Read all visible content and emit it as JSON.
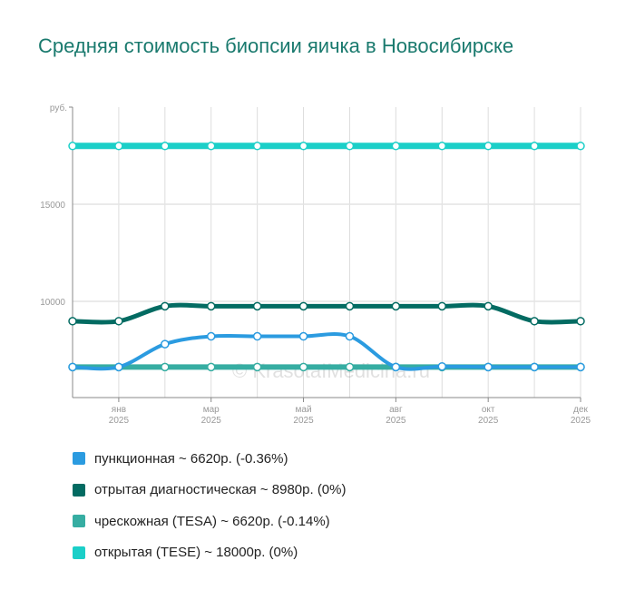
{
  "title": "Средняя стоимость биопсии яичка в Новосибирске",
  "watermark": "© KrasotaIMedicina.ru",
  "chart_data": {
    "type": "line",
    "title": "Средняя стоимость биопсии яичка в Новосибирске",
    "ylabel": "руб.",
    "ylim": [
      5050,
      19000
    ],
    "yticks": [
      {
        "value": 10000,
        "label": "10000"
      },
      {
        "value": 15000,
        "label": "15000"
      }
    ],
    "x_labels": [
      null,
      [
        "янв",
        "2025"
      ],
      null,
      [
        "мар",
        "2025"
      ],
      null,
      [
        "май",
        "2025"
      ],
      null,
      [
        "авг",
        "2025"
      ],
      null,
      [
        "окт",
        "2025"
      ],
      null,
      [
        "дек",
        "2025"
      ]
    ],
    "grid": true,
    "legend_position": "bottom",
    "series": [
      {
        "name": "пунктионная",
        "legend": "пункционная ~ 6620р. (-0.36%)",
        "color": "#2b9be0",
        "values": [
          6620,
          6620,
          7800,
          8200,
          8200,
          8200,
          8200,
          6620,
          6650,
          6620,
          6620,
          6620
        ]
      },
      {
        "name": "отрытая диагностическая",
        "legend": "отрытая диагностическая ~ 8980р. (0%)",
        "color": "#036b62",
        "values": [
          8980,
          8980,
          9750,
          9750,
          9750,
          9750,
          9750,
          9750,
          9750,
          9750,
          8980,
          8980
        ]
      },
      {
        "name": "чрескожная (TESA)",
        "legend": "чрескожная (TESA) ~ 6620р. (-0.14%)",
        "color": "#36ada2",
        "values": [
          6620,
          6620,
          6620,
          6620,
          6620,
          6620,
          6620,
          6620,
          6620,
          6620,
          6620,
          6620
        ]
      },
      {
        "name": "открытая (TESE)",
        "legend": "открытая (TESE) ~ 18000р. (0%)",
        "color": "#1bcfc8",
        "values": [
          18000,
          18000,
          18000,
          18000,
          18000,
          18000,
          18000,
          18000,
          18000,
          18000,
          18000,
          18000
        ]
      }
    ]
  }
}
